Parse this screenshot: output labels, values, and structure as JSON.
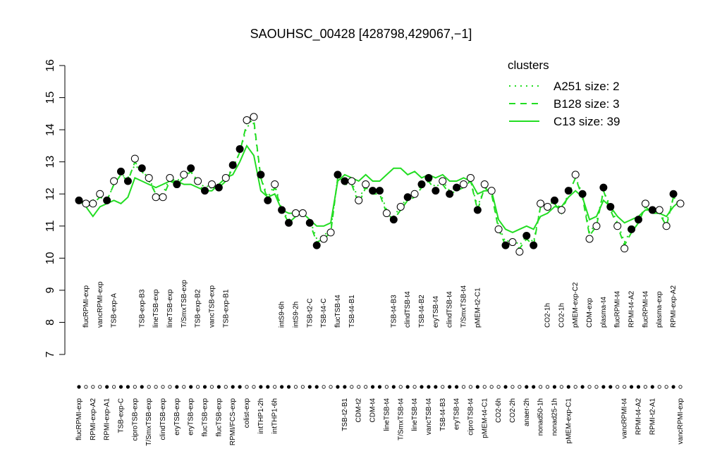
{
  "chart_data": {
    "type": "line",
    "title": "SAOUHSC_00428 [428798,429067,−1]",
    "ylim": [
      7,
      16
    ],
    "yticks": [
      7,
      8,
      9,
      10,
      11,
      12,
      13,
      14,
      15,
      16
    ],
    "legend_title": "clusters",
    "legend_position": "top-right",
    "categories": [
      "flucRPMI-exp",
      "flucRPMI-exp",
      "RPMI-exp-A2",
      "vancRPMI-exp",
      "RPMI-exp-A1",
      "TSB-exp-A",
      "TSB-exp-C",
      null,
      "ciproTSB-exp",
      "TSB-exp-B3",
      "T/SmxTSB-exp",
      "lineTSB-exp",
      "clindTSB-exp",
      "lineTSB-exp",
      "eryTSB-exp",
      "T/SmxTSB-exp",
      "eryTSB-exp",
      "TSB-exp-B2",
      "flucTSB-exp",
      "vancTSB-exp",
      "flucTSB-exp",
      "TSB-exp-B1",
      "RPMI/FCS-exp",
      null,
      "colist-exp",
      null,
      "intTHP1-2h",
      null,
      "intTHP1-6h",
      "intS9-6h",
      null,
      "intS9-2h",
      null,
      "TSB-t2-C",
      null,
      "TSB-t4-C",
      null,
      "flucTSB-t4",
      "TSB-t2-B1",
      "TSB-t4-B1",
      "CDM-t2",
      null,
      "CDM-t4",
      null,
      "lineTSB-t4",
      "TSB-t4-B3",
      "T/SmxTSB-t4",
      "clindTSB-t4",
      "lineTSB-t4",
      "TSB-t4-B2",
      "vancTSB-t4",
      "eryTSB-t4",
      "TSB-t4-B3",
      "clindTSB-t4",
      "eryTSB-t4",
      "T/SmxTSB-t4",
      "ciproTSB-t4",
      "pMEM-t2-C1",
      "pMEM-t4-C1",
      null,
      "CO2-6h",
      null,
      "CO2-2h",
      null,
      "anaer-2h",
      null,
      "nonad50-1h",
      "CO2-1h",
      "nonad25-1h",
      "CO2-1h",
      "pMEM-exp-C1",
      "pMEM-exp-C2",
      null,
      "CDM-exp",
      null,
      "plasma-t4",
      null,
      "flucRPMI-t4",
      "vancRPMI-t4",
      "RPMI-t4-A2",
      "RPMI-t4-A2",
      "flucRPMI-t4",
      "RPMI-t2-A1",
      "plasma-exp",
      null,
      "RPMI-exp-A2",
      "vancRPMI-exp"
    ],
    "values": [
      11.8,
      11.7,
      11.7,
      12.0,
      11.8,
      12.4,
      12.7,
      12.4,
      13.1,
      12.8,
      12.5,
      11.9,
      11.9,
      12.5,
      12.3,
      12.6,
      12.8,
      12.4,
      12.1,
      12.3,
      12.2,
      12.5,
      12.9,
      13.4,
      14.3,
      14.4,
      12.6,
      11.8,
      12.3,
      11.5,
      11.1,
      11.4,
      11.4,
      11.1,
      10.4,
      10.6,
      10.8,
      12.6,
      12.4,
      12.4,
      11.8,
      12.3,
      12.1,
      12.1,
      11.4,
      11.2,
      11.6,
      11.9,
      12.0,
      12.3,
      12.5,
      12.1,
      12.4,
      12.0,
      12.2,
      12.3,
      12.5,
      11.5,
      12.3,
      12.1,
      10.9,
      10.4,
      10.5,
      10.2,
      10.7,
      10.4,
      11.7,
      11.6,
      11.8,
      11.5,
      12.1,
      12.6,
      12.0,
      10.6,
      11.0,
      12.2,
      11.6,
      11.0,
      10.3,
      10.9,
      11.2,
      11.7,
      11.5,
      11.5,
      11.0,
      12.0,
      11.7
    ],
    "point_filled": [
      true,
      false,
      false,
      false,
      true,
      false,
      true,
      true,
      false,
      true,
      false,
      false,
      false,
      false,
      true,
      false,
      true,
      false,
      true,
      false,
      true,
      false,
      true,
      true,
      false,
      false,
      true,
      true,
      false,
      true,
      true,
      false,
      false,
      true,
      true,
      false,
      false,
      true,
      true,
      false,
      false,
      false,
      true,
      true,
      false,
      true,
      false,
      true,
      false,
      true,
      true,
      true,
      false,
      true,
      true,
      false,
      false,
      true,
      false,
      false,
      false,
      true,
      false,
      false,
      true,
      true,
      false,
      false,
      true,
      false,
      true,
      false,
      true,
      false,
      false,
      true,
      true,
      false,
      false,
      true,
      true,
      false,
      true,
      false,
      false,
      true,
      false
    ],
    "series": [
      {
        "name": "A251 size: 2",
        "color": "#22dd22",
        "dash": "dotted",
        "values": [
          11.9,
          11.7,
          11.8,
          12.0,
          11.8,
          12.3,
          12.6,
          12.5,
          12.9,
          12.7,
          12.5,
          12.0,
          12.0,
          12.5,
          12.4,
          12.6,
          12.7,
          12.4,
          12.2,
          12.3,
          12.3,
          12.5,
          12.8,
          13.3,
          14.1,
          14.2,
          12.5,
          11.9,
          12.3,
          11.5,
          11.2,
          11.4,
          11.4,
          11.2,
          10.6,
          10.7,
          10.9,
          12.5,
          12.4,
          12.4,
          11.8,
          12.3,
          12.1,
          12.1,
          11.5,
          11.3,
          11.6,
          11.9,
          12.0,
          12.3,
          12.5,
          12.2,
          12.4,
          12.1,
          12.2,
          12.3,
          12.4,
          11.6,
          12.2,
          12.1,
          11.0,
          10.5,
          10.6,
          10.4,
          10.7,
          10.5,
          11.6,
          11.6,
          11.8,
          11.5,
          12.0,
          12.5,
          12.0,
          10.8,
          11.1,
          12.1,
          11.6,
          11.1,
          10.5,
          10.9,
          11.2,
          11.6,
          11.5,
          11.4,
          11.1,
          11.9,
          11.7
        ]
      },
      {
        "name": "B128 size: 3",
        "color": "#22dd22",
        "dash": "dashed",
        "values": [
          11.8,
          11.6,
          11.7,
          11.9,
          11.8,
          12.3,
          12.6,
          12.4,
          13.0,
          12.7,
          12.4,
          12.0,
          11.9,
          12.4,
          12.3,
          12.5,
          12.7,
          12.3,
          12.1,
          12.2,
          12.2,
          12.4,
          12.8,
          13.3,
          14.2,
          14.3,
          12.5,
          11.8,
          12.2,
          11.5,
          11.1,
          11.3,
          11.4,
          11.1,
          10.5,
          10.6,
          10.8,
          12.5,
          12.3,
          12.3,
          11.7,
          12.2,
          12.0,
          12.0,
          11.4,
          11.2,
          11.5,
          11.8,
          11.9,
          12.2,
          12.4,
          12.1,
          12.3,
          12.0,
          12.1,
          12.2,
          12.4,
          11.5,
          12.2,
          12.0,
          10.9,
          10.4,
          10.5,
          10.3,
          10.6,
          10.4,
          11.6,
          11.5,
          11.7,
          11.4,
          12.0,
          12.5,
          11.9,
          10.7,
          11.0,
          12.1,
          11.5,
          11.0,
          10.4,
          10.8,
          11.1,
          11.6,
          11.4,
          11.4,
          11.0,
          11.9,
          11.6
        ]
      },
      {
        "name": "C13 size: 39",
        "color": "#22dd22",
        "dash": "solid",
        "values": [
          11.9,
          11.6,
          11.3,
          11.6,
          11.7,
          11.8,
          11.7,
          11.9,
          12.5,
          12.4,
          12.3,
          12.2,
          12.3,
          12.4,
          12.4,
          12.3,
          12.3,
          12.2,
          12.1,
          12.1,
          12.3,
          12.5,
          12.6,
          13.0,
          13.5,
          13.2,
          12.1,
          11.9,
          12.0,
          11.5,
          11.4,
          11.4,
          11.4,
          11.2,
          11.0,
          11.0,
          11.1,
          12.4,
          12.6,
          12.5,
          12.4,
          12.6,
          12.4,
          12.4,
          12.6,
          12.8,
          12.8,
          12.6,
          12.7,
          12.5,
          12.6,
          12.5,
          12.6,
          12.4,
          12.4,
          12.5,
          12.4,
          12.0,
          12.1,
          12.1,
          11.2,
          10.9,
          10.8,
          10.9,
          11.0,
          10.9,
          11.3,
          11.4,
          11.6,
          11.6,
          11.9,
          12.1,
          11.9,
          11.2,
          11.3,
          11.8,
          11.6,
          11.3,
          11.1,
          11.2,
          11.3,
          11.5,
          11.5,
          11.4,
          11.3,
          11.6,
          11.8
        ]
      }
    ]
  }
}
